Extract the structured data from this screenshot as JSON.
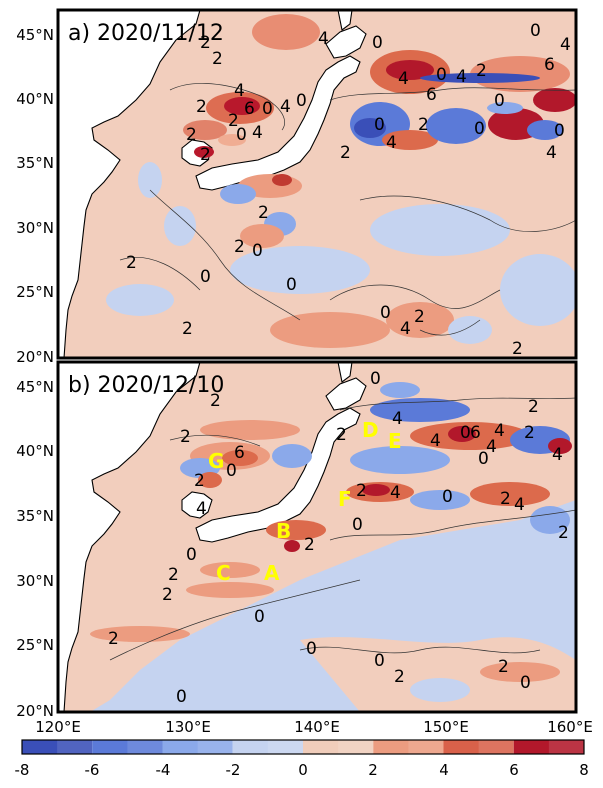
{
  "panels": [
    {
      "id": "a",
      "title": "a) 2020/11/12",
      "contour_labels": [
        "2",
        "4",
        "2",
        "0",
        "2",
        "4",
        "6",
        "0",
        "4",
        "0",
        "2",
        "4",
        "2",
        "0",
        "2",
        "4",
        "6",
        "0",
        "4",
        "2",
        "6",
        "0",
        "0",
        "4",
        "2",
        "0",
        "4",
        "0",
        "0",
        "2",
        "4",
        "2",
        "2",
        "0",
        "2",
        "0",
        "4",
        "2",
        "0",
        "0",
        "2",
        "2"
      ]
    },
    {
      "id": "b",
      "title": "b) 2020/12/10",
      "contour_labels": [
        "2",
        "0",
        "4",
        "2",
        "0",
        "6",
        "4",
        "0",
        "4",
        "2",
        "2",
        "4",
        "4",
        "0",
        "2",
        "2",
        "6",
        "4",
        "2",
        "4",
        "0",
        "2",
        "0",
        "4",
        "2",
        "0",
        "2",
        "2",
        "0",
        "2",
        "0",
        "2",
        "0",
        "0",
        "2",
        "0",
        "2"
      ],
      "point_labels": [
        "D",
        "E",
        "G",
        "F",
        "B",
        "C",
        "A"
      ],
      "point_label_color": "#ffff00"
    }
  ],
  "axes": {
    "lat_ticks": [
      "45°N",
      "40°N",
      "35°N",
      "30°N",
      "25°N",
      "20°N"
    ],
    "lon_ticks": [
      "120°E",
      "130°E",
      "140°E",
      "150°E",
      "160°E"
    ]
  },
  "colorbar": {
    "ticks": [
      "-8",
      "-6",
      "-4",
      "-2",
      "0",
      "2",
      "4",
      "6",
      "8"
    ],
    "colors": [
      "#3b4cc0",
      "#5a78d6",
      "#7c9cea",
      "#a9c1f2",
      "#cfd9f2",
      "#f3cdb9",
      "#efa98a",
      "#dc6a4c",
      "#b40426"
    ],
    "segments": [
      {
        "from": -8,
        "to": -6,
        "color": "#3a4fb8"
      },
      {
        "from": -6,
        "to": -4,
        "color": "#5b7ad8"
      },
      {
        "from": -4,
        "to": -2,
        "color": "#8ba9ea"
      },
      {
        "from": -2,
        "to": 0,
        "color": "#c5d3f0"
      },
      {
        "from": 0,
        "to": 2,
        "color": "#f0cdbb"
      },
      {
        "from": 2,
        "to": 4,
        "color": "#ec9c80"
      },
      {
        "from": 4,
        "to": 6,
        "color": "#d9614a"
      },
      {
        "from": 6,
        "to": 8,
        "color": "#b2182b"
      }
    ]
  }
}
